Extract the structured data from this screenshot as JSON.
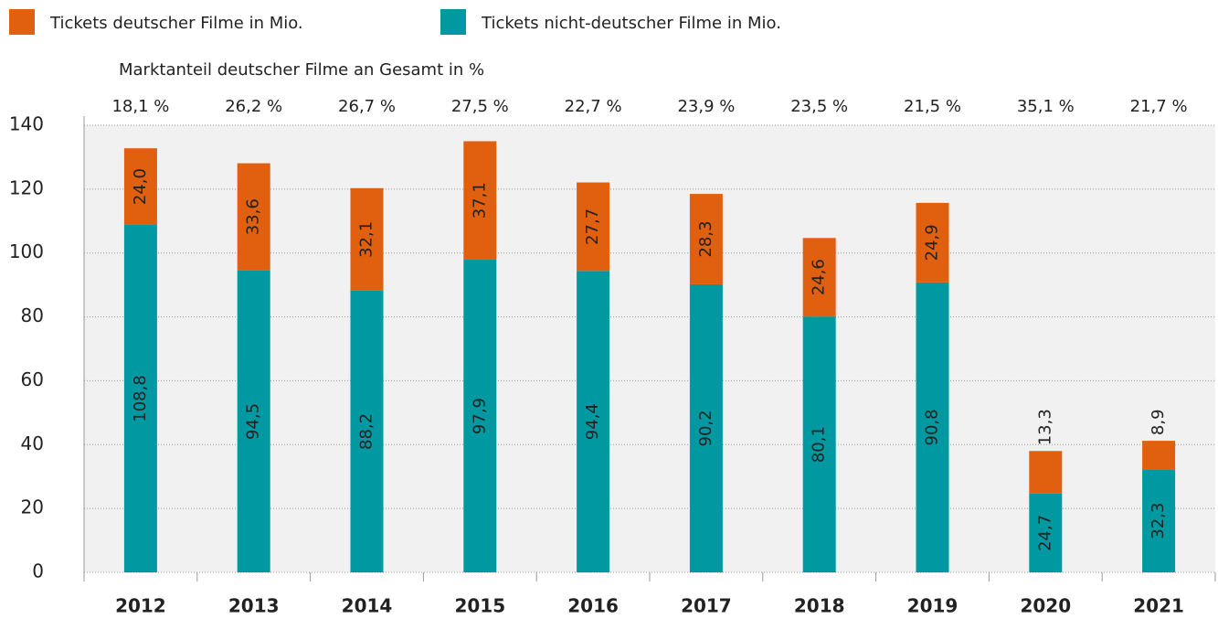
{
  "chart_data": {
    "type": "stacked_bar",
    "categories": [
      "2012",
      "2013",
      "2014",
      "2015",
      "2016",
      "2017",
      "2018",
      "2019",
      "2020",
      "2021"
    ],
    "series": [
      {
        "name": "Tickets nicht-deutscher Filme in Mio.",
        "color": "#0099a1",
        "values": [
          108.8,
          94.5,
          88.2,
          97.9,
          94.4,
          90.2,
          80.1,
          90.8,
          24.7,
          32.3
        ],
        "value_labels": [
          "108,8",
          "94,5",
          "88,2",
          "97,9",
          "94,4",
          "90,2",
          "80,1",
          "90,8",
          "24,7",
          "32,3"
        ]
      },
      {
        "name": "Tickets deutscher Filme in Mio.",
        "color": "#e0600f",
        "values": [
          24.0,
          33.6,
          32.1,
          37.1,
          27.7,
          28.3,
          24.6,
          24.9,
          13.3,
          8.9
        ],
        "value_labels": [
          "24,0",
          "33,6",
          "32,1",
          "37,1",
          "27,7",
          "28,3",
          "24,6",
          "24,9",
          "13,3",
          "8,9"
        ]
      }
    ],
    "market_share": {
      "title": "Marktanteil deutscher Filme an Gesamt in %",
      "values": [
        18.1,
        26.2,
        26.7,
        27.5,
        22.7,
        23.9,
        23.5,
        21.5,
        35.1,
        21.7
      ],
      "value_labels": [
        "18,1 %",
        "26,2 %",
        "26,7 %",
        "27,5 %",
        "22,7 %",
        "23,9 %",
        "23,5 %",
        "21,5 %",
        "35,1 %",
        "21,7 %"
      ]
    },
    "ylim": [
      0,
      140
    ],
    "yticks": [
      0,
      20,
      40,
      60,
      80,
      100,
      120,
      140
    ],
    "grid": true
  }
}
